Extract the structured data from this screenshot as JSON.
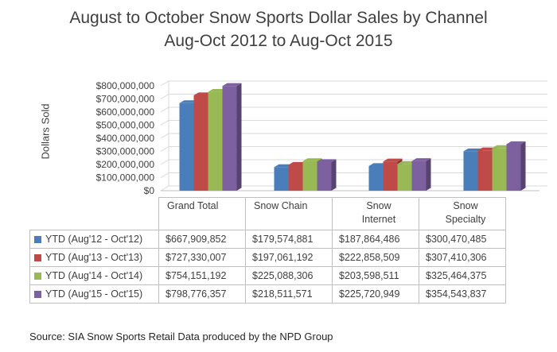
{
  "chart_data": {
    "type": "bar",
    "title": "August to October Snow Sports Dollar Sales by Channel",
    "subtitle": "Aug-Oct 2012 to Aug-Oct 2015",
    "ylabel": "Dollars Sold",
    "ylim": [
      0,
      800000000
    ],
    "yticks": [
      "$800,000,000",
      "$700,000,000",
      "$600,000,000",
      "$500,000,000",
      "$400,000,000",
      "$300,000,000",
      "$200,000,000",
      "$100,000,000",
      "$0"
    ],
    "categories": [
      "Grand Total",
      "Snow Chain",
      "Snow Internet",
      "Snow Specialty"
    ],
    "series": [
      {
        "name": "YTD (Aug'12 - Oct'12)",
        "color": "#4a7ebb",
        "values": [
          667909852,
          179574881,
          187864486,
          300470485
        ],
        "labels": [
          "$667,909,852",
          "$179,574,881",
          "$187,864,486",
          "$300,470,485"
        ]
      },
      {
        "name": "YTD (Aug'13 - Oct'13)",
        "color": "#be4b48",
        "values": [
          727330007,
          197061192,
          222858509,
          307410306
        ],
        "labels": [
          "$727,330,007",
          "$197,061,192",
          "$222,858,509",
          "$307,410,306"
        ]
      },
      {
        "name": "YTD (Aug'14 - Oct'14)",
        "color": "#98b954",
        "values": [
          754151192,
          225088306,
          203598511,
          325464375
        ],
        "labels": [
          "$754,151,192",
          "$225,088,306",
          "$203,598,511",
          "$325,464,375"
        ]
      },
      {
        "name": "YTD (Aug'15 - Oct'15)",
        "color": "#7d60a0",
        "values": [
          798776357,
          218511571,
          225720949,
          354543837
        ],
        "labels": [
          "$798,776,357",
          "$218,511,571",
          "$225,720,949",
          "$354,543,837"
        ]
      }
    ],
    "grid": true,
    "legend": "data-table"
  },
  "header_lines": {
    "grand_total": "Grand Total",
    "snow_chain": "Snow Chain",
    "snow_internet_1": "Snow",
    "snow_internet_2": "Internet",
    "snow_specialty_1": "Snow",
    "snow_specialty_2": "Specialty"
  },
  "source": "Source:  SIA Snow Sports Retail Data produced by the NPD Group"
}
